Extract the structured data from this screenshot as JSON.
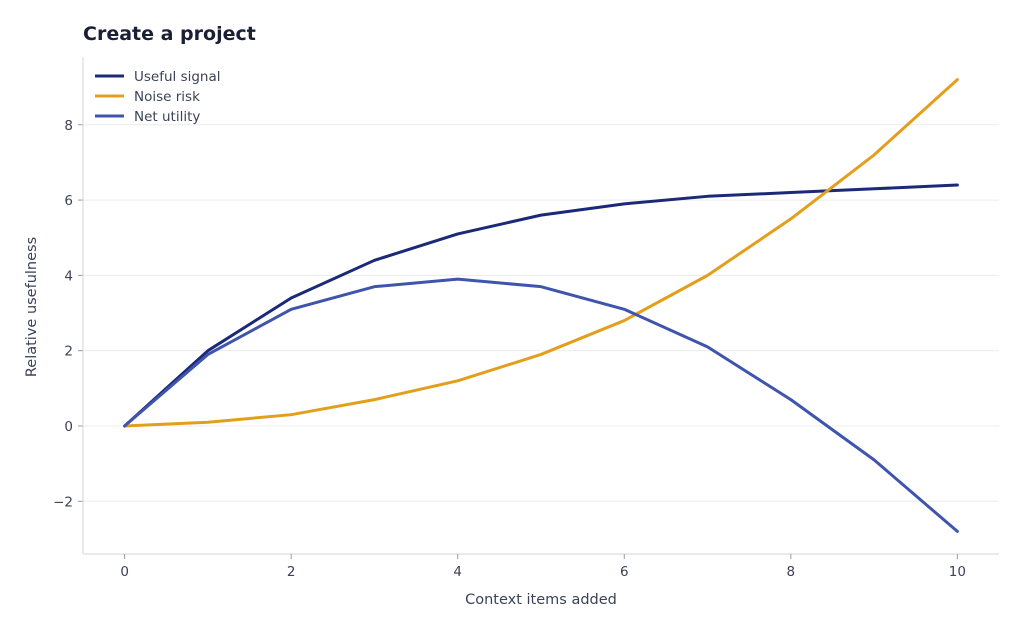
{
  "chart_data": {
    "type": "line",
    "title": "Create a project",
    "xlabel": "Context items added",
    "ylabel": "Relative usefulness",
    "x": [
      0,
      1,
      2,
      3,
      4,
      5,
      6,
      7,
      8,
      9,
      10
    ],
    "xlim": [
      -0.5,
      10.5
    ],
    "ylim": [
      -3.4,
      9.8
    ],
    "xticks": [
      0,
      2,
      4,
      6,
      8,
      10
    ],
    "yticks": [
      -2,
      0,
      2,
      4,
      6,
      8
    ],
    "ytick_labels": [
      "−2",
      "0",
      "2",
      "4",
      "6",
      "8"
    ],
    "grid": "horizontal",
    "legend_position": "top-left",
    "series": [
      {
        "name": "Useful signal",
        "color": "#1a2a78",
        "values": [
          0,
          2.0,
          3.4,
          4.4,
          5.1,
          5.6,
          5.9,
          6.1,
          6.2,
          6.3,
          6.4
        ]
      },
      {
        "name": "Noise risk",
        "color": "#e39f1c",
        "values": [
          0,
          0.1,
          0.3,
          0.7,
          1.2,
          1.9,
          2.8,
          4.0,
          5.5,
          7.2,
          9.2
        ]
      },
      {
        "name": "Net utility",
        "color": "#3f55ad",
        "values": [
          0,
          1.9,
          3.1,
          3.7,
          3.9,
          3.7,
          3.1,
          2.1,
          0.7,
          -0.9,
          -2.8
        ]
      }
    ]
  }
}
